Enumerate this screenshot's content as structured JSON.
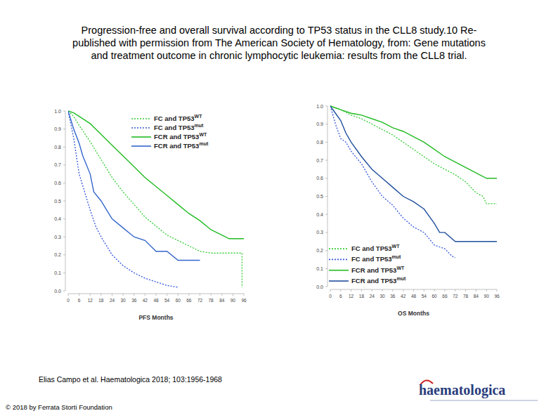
{
  "title_lines": [
    "Progression-free and overall survival according to TP53 status in the CLL8 study.10 Re-",
    "published with permission from The American Society of Hematology, from: Gene mutations",
    "and treatment outcome in chronic lymphocytic leukemia: results from the CLL8 trial."
  ],
  "citation": "Elias Campo et al. Haematologica 2018; 103:1956-1968",
  "copyright": "© 2018 by Ferrata Storti Foundation",
  "logo": "haematologica",
  "chart_data": [
    {
      "type": "line",
      "x_label": "PFS Months",
      "legend": "upper-right",
      "grid": false,
      "marker": "none",
      "xlim": [
        0,
        96
      ],
      "ylim": [
        0,
        1
      ],
      "xticks": [
        0,
        6,
        12,
        18,
        24,
        30,
        36,
        42,
        48,
        54,
        60,
        66,
        72,
        78,
        84,
        90,
        96
      ],
      "yticks": [
        {
          "value": 0,
          "label": "0.0"
        },
        0.1,
        0.2,
        0.3,
        0.4,
        0.5,
        0.6,
        0.7,
        0.8,
        0.9,
        {
          "value": 1,
          "label": "1.0"
        }
      ],
      "series": [
        {
          "name": "FC and TP53WT",
          "color": "#33cc33",
          "line_style": "dotted",
          "x": [
            0,
            3,
            6,
            12,
            18,
            24,
            30,
            36,
            42,
            48,
            54,
            60,
            66,
            72,
            78,
            95,
            95
          ],
          "values": [
            1,
            0.97,
            0.92,
            0.83,
            0.73,
            0.63,
            0.55,
            0.48,
            0.41,
            0.36,
            0.31,
            0.28,
            0.25,
            0.22,
            0.21,
            0.21,
            0.02
          ]
        },
        {
          "name": "FC and TP53mut",
          "color": "#3355dd",
          "line_style": "dotted",
          "x": [
            0,
            3,
            6,
            9,
            12,
            15,
            18,
            24,
            30,
            36,
            42,
            48,
            54,
            60
          ],
          "values": [
            1,
            0.85,
            0.65,
            0.55,
            0.45,
            0.36,
            0.3,
            0.2,
            0.14,
            0.1,
            0.07,
            0.05,
            0.03,
            0.02
          ]
        },
        {
          "name": "FCR and TP53WT",
          "color": "#22bb22",
          "line_style": "solid",
          "x": [
            0,
            3,
            6,
            12,
            18,
            24,
            30,
            36,
            42,
            48,
            54,
            60,
            66,
            72,
            78,
            84,
            88,
            96
          ],
          "values": [
            1,
            0.99,
            0.97,
            0.93,
            0.87,
            0.81,
            0.75,
            0.69,
            0.63,
            0.58,
            0.53,
            0.48,
            0.43,
            0.39,
            0.34,
            0.31,
            0.29,
            0.29
          ]
        },
        {
          "name": "FCR and TP53mut",
          "color": "#3366cc",
          "line_style": "solid",
          "x": [
            0,
            3,
            6,
            8,
            12,
            14,
            18,
            21,
            24,
            30,
            36,
            42,
            48,
            54,
            60,
            72
          ],
          "values": [
            1,
            0.9,
            0.82,
            0.75,
            0.65,
            0.55,
            0.5,
            0.45,
            0.4,
            0.35,
            0.3,
            0.28,
            0.22,
            0.22,
            0.17,
            0.17
          ]
        }
      ]
    },
    {
      "type": "line",
      "x_label": "OS Months",
      "legend": "lower-left",
      "grid": false,
      "marker": "none",
      "xlim": [
        0,
        96
      ],
      "ylim": [
        0,
        1
      ],
      "xticks": [
        0,
        6,
        12,
        18,
        24,
        30,
        36,
        42,
        48,
        54,
        60,
        66,
        72,
        78,
        84,
        90,
        96
      ],
      "yticks": [
        {
          "value": 0,
          "label": "0.0"
        },
        0.1,
        0.2,
        0.3,
        0.4,
        0.5,
        0.6,
        0.7,
        0.8,
        0.9,
        {
          "value": 1,
          "label": "1.0"
        }
      ],
      "series": [
        {
          "name": "FC and TP53WT",
          "color": "#33cc33",
          "line_style": "dotted",
          "x": [
            0,
            6,
            12,
            18,
            24,
            30,
            36,
            42,
            48,
            54,
            60,
            66,
            72,
            78,
            84,
            88,
            90,
            96
          ],
          "values": [
            1,
            0.98,
            0.95,
            0.93,
            0.9,
            0.87,
            0.84,
            0.8,
            0.76,
            0.72,
            0.68,
            0.65,
            0.62,
            0.58,
            0.52,
            0.5,
            0.46,
            0.46
          ]
        },
        {
          "name": "FC and TP53mut",
          "color": "#3355dd",
          "line_style": "dotted",
          "x": [
            0,
            3,
            6,
            9,
            12,
            18,
            24,
            30,
            36,
            42,
            48,
            54,
            60,
            66,
            70,
            72
          ],
          "values": [
            1,
            0.9,
            0.82,
            0.8,
            0.75,
            0.68,
            0.58,
            0.5,
            0.45,
            0.38,
            0.33,
            0.3,
            0.23,
            0.21,
            0.17,
            0.16
          ]
        },
        {
          "name": "FCR and TP53WT",
          "color": "#22bb22",
          "line_style": "solid",
          "x": [
            0,
            6,
            12,
            18,
            24,
            30,
            36,
            42,
            48,
            54,
            60,
            66,
            72,
            78,
            84,
            90,
            96
          ],
          "values": [
            1,
            0.98,
            0.96,
            0.95,
            0.93,
            0.91,
            0.88,
            0.86,
            0.83,
            0.8,
            0.76,
            0.72,
            0.69,
            0.66,
            0.63,
            0.6,
            0.6
          ]
        },
        {
          "name": "FCR and TP53mut",
          "color": "#1f4e9c",
          "line_style": "solid",
          "x": [
            0,
            3,
            6,
            9,
            12,
            18,
            24,
            30,
            36,
            42,
            48,
            54,
            60,
            63,
            66,
            72,
            96
          ],
          "values": [
            1,
            0.96,
            0.92,
            0.85,
            0.8,
            0.72,
            0.65,
            0.6,
            0.55,
            0.5,
            0.47,
            0.43,
            0.35,
            0.3,
            0.3,
            0.25,
            0.25
          ]
        }
      ]
    }
  ]
}
